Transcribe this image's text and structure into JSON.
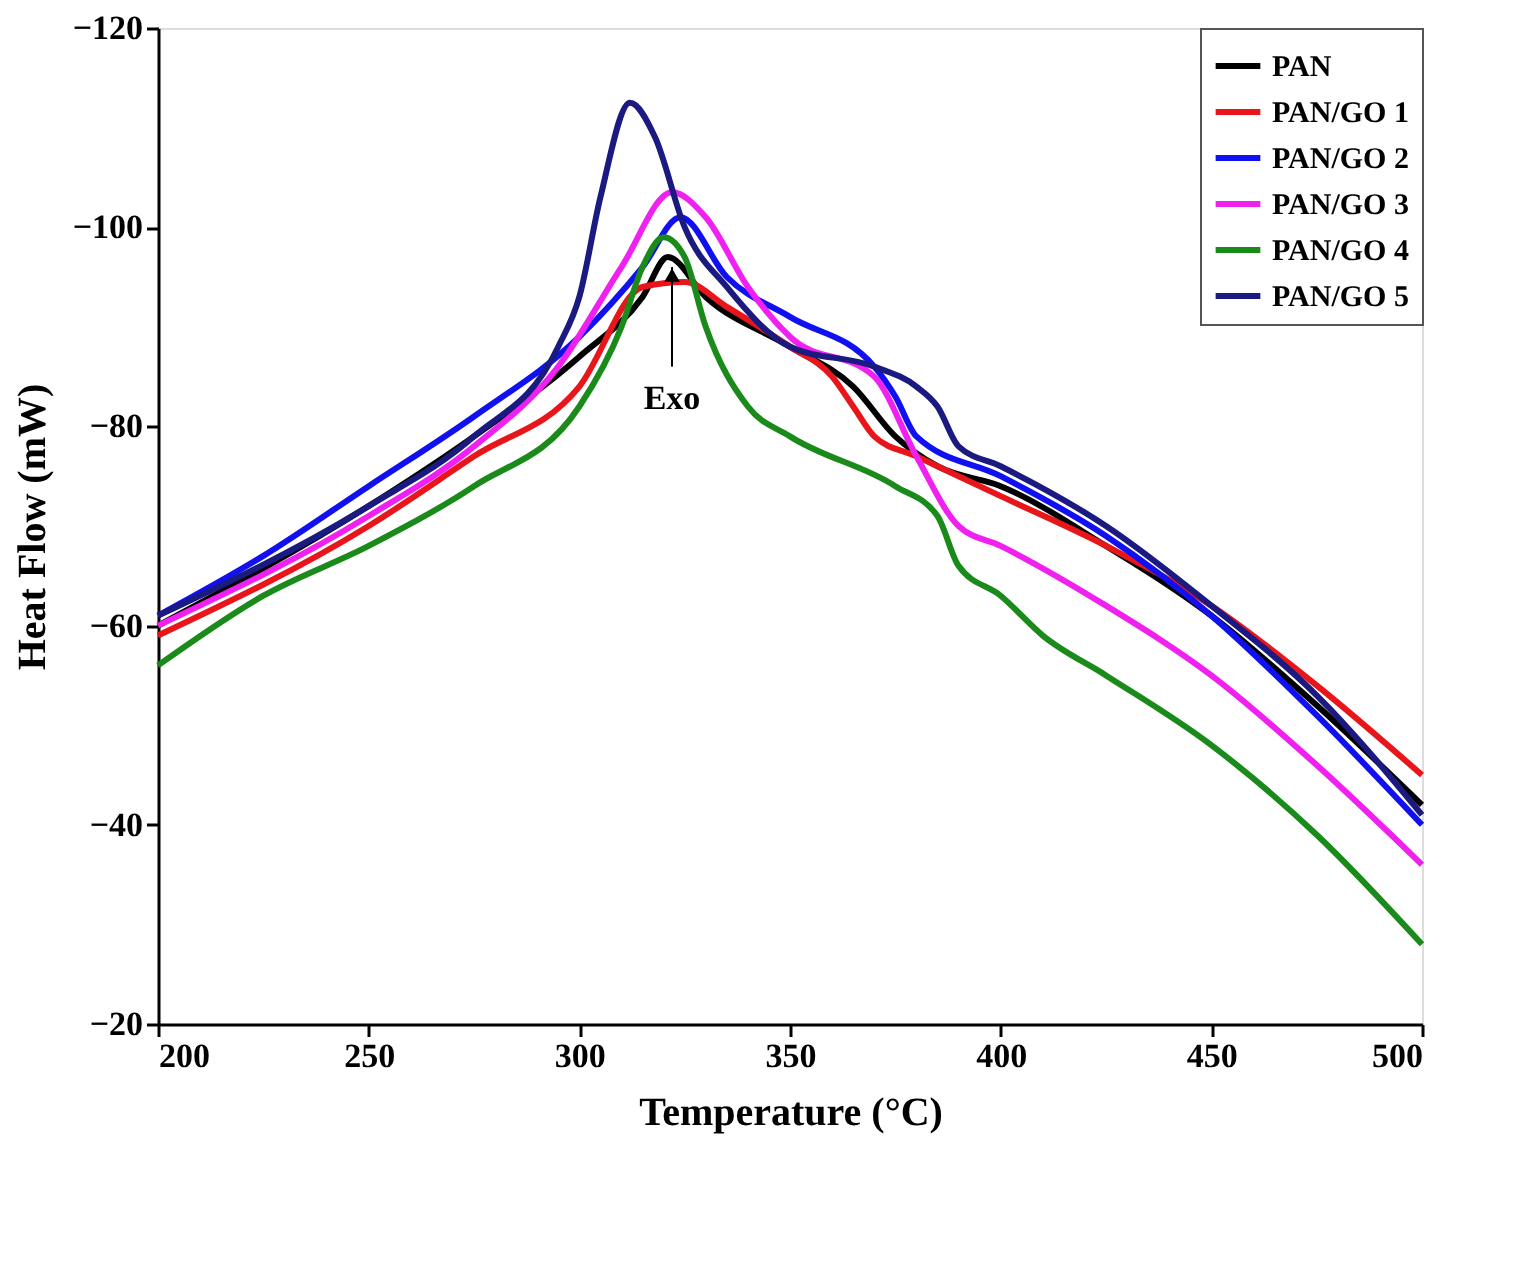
{
  "chart_data": {
    "type": "line",
    "xlabel": "Temperature (°C)",
    "ylabel": "Heat Flow (mW)",
    "xlim": [
      200,
      500
    ],
    "xticks": [
      200,
      250,
      300,
      350,
      400,
      450,
      500
    ],
    "ylim": [
      -20,
      -120
    ],
    "yticks": [
      -20,
      -40,
      -60,
      -80,
      -100,
      -120
    ],
    "grid": false,
    "legend": "top right",
    "line_style": "solid",
    "marker": "none",
    "annotations": [
      {
        "text": "Exo",
        "x": 322,
        "y": -96
      }
    ],
    "series": [
      {
        "name": "PAN",
        "color": "#000000",
        "x": [
          200,
          250,
          275,
          300,
          315,
          321,
          330,
          350,
          365,
          375,
          385,
          400,
          425,
          450,
          475,
          500
        ],
        "values": [
          -60,
          -72,
          -79,
          -87,
          -93,
          -97,
          -93,
          -88,
          -84,
          -79,
          -76,
          -74,
          -68,
          -61,
          -52,
          -42
        ]
      },
      {
        "name": "PAN/GO 1",
        "color": "#e8151b",
        "x": [
          200,
          250,
          275,
          300,
          315,
          325,
          335,
          350,
          360,
          365,
          370,
          380,
          400,
          425,
          450,
          475,
          500
        ],
        "values": [
          -59,
          -70,
          -77,
          -84,
          -94,
          -94.5,
          -92,
          -88,
          -85,
          -82,
          -79,
          -77,
          -73,
          -68,
          -62,
          -54,
          -45
        ]
      },
      {
        "name": "PAN/GO 2",
        "color": "#1010f0",
        "x": [
          200,
          225,
          250,
          275,
          300,
          315,
          324,
          335,
          350,
          370,
          375,
          380,
          400,
          425,
          450,
          475,
          500
        ],
        "values": [
          -61,
          -67,
          -74,
          -81,
          -89,
          -96,
          -101,
          -95,
          -91,
          -86,
          -83,
          -79,
          -75,
          -69,
          -61,
          -51,
          -40
        ]
      },
      {
        "name": "PAN/GO 3",
        "color": "#f020f0",
        "x": [
          200,
          250,
          275,
          295,
          310,
          322,
          330,
          340,
          350,
          370,
          380,
          390,
          400,
          425,
          450,
          475,
          500
        ],
        "values": [
          -60,
          -71,
          -78,
          -86,
          -96,
          -103.5,
          -101,
          -94,
          -89,
          -85,
          -77,
          -70,
          -68,
          -62,
          -55,
          -46,
          -36
        ]
      },
      {
        "name": "PAN/GO 4",
        "color": "#1a8a1a",
        "x": [
          200,
          225,
          250,
          275,
          300,
          310,
          315,
          320,
          325,
          330,
          340,
          350,
          375,
          385,
          390,
          400,
          410,
          425,
          450,
          475,
          500
        ],
        "values": [
          -56,
          -63,
          -68,
          -74,
          -82,
          -90,
          -96,
          -99,
          -97,
          -90,
          -82,
          -79,
          -74,
          -71,
          -66,
          -63,
          -59,
          -55,
          -48,
          -39,
          -28
        ]
      },
      {
        "name": "PAN/GO 5",
        "color": "#1a1a80",
        "x": [
          200,
          250,
          275,
          295,
          300,
          305,
          312,
          318,
          325,
          335,
          350,
          370,
          380,
          385,
          390,
          400,
          425,
          450,
          475,
          500
        ],
        "values": [
          -61,
          -72,
          -79,
          -88,
          -93,
          -103,
          -112.5,
          -109,
          -100,
          -94,
          -88,
          -86,
          -84,
          -82,
          -78,
          -76,
          -70,
          -62,
          -53,
          -41
        ]
      }
    ]
  }
}
